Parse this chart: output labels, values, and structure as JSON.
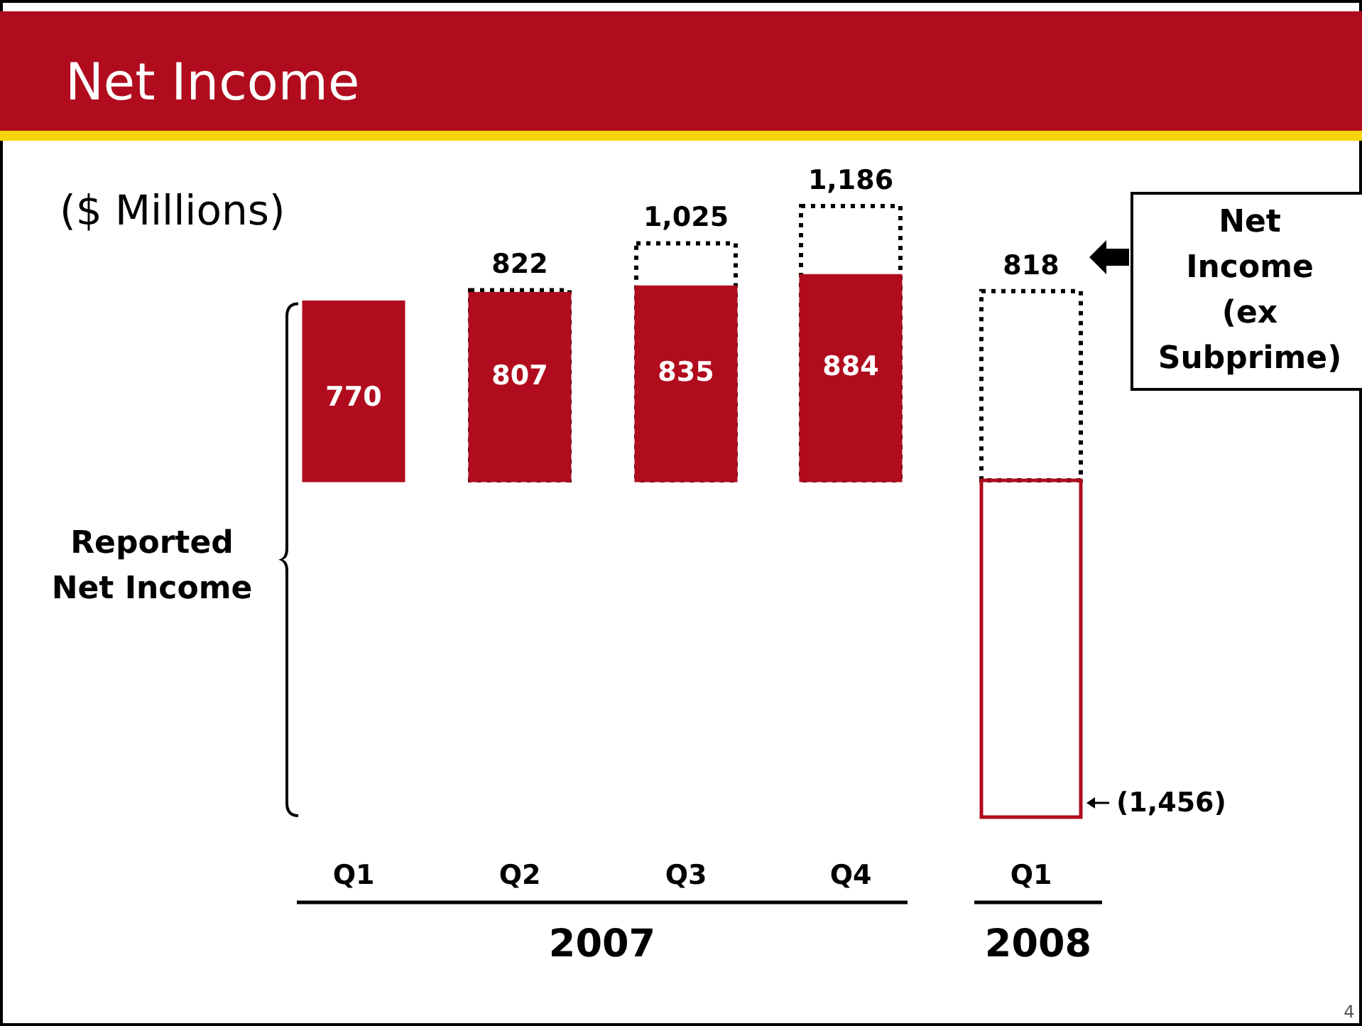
{
  "chart_data": {
    "type": "bar",
    "title": "Net Income",
    "subtitle": "($ Millions)",
    "categories": [
      "Q1",
      "Q2",
      "Q3",
      "Q4",
      "Q1"
    ],
    "series": [
      {
        "name": "Net Income (ex Subprime)",
        "color": "#000000",
        "line_style": "dotted",
        "values": [
          null,
          822,
          1025,
          1186,
          818
        ],
        "value_labels": [
          null,
          "822",
          "1,025",
          "1,186",
          "818"
        ]
      },
      {
        "name": "Reported Net Income",
        "color": "#b00c1e",
        "values": [
          770,
          807,
          835,
          884,
          -1456
        ],
        "value_labels": [
          "770",
          "807",
          "835",
          "884",
          "(1,456)"
        ]
      }
    ],
    "annotations": [
      "2007",
      "2008",
      "4"
    ],
    "legend": false
  }
}
